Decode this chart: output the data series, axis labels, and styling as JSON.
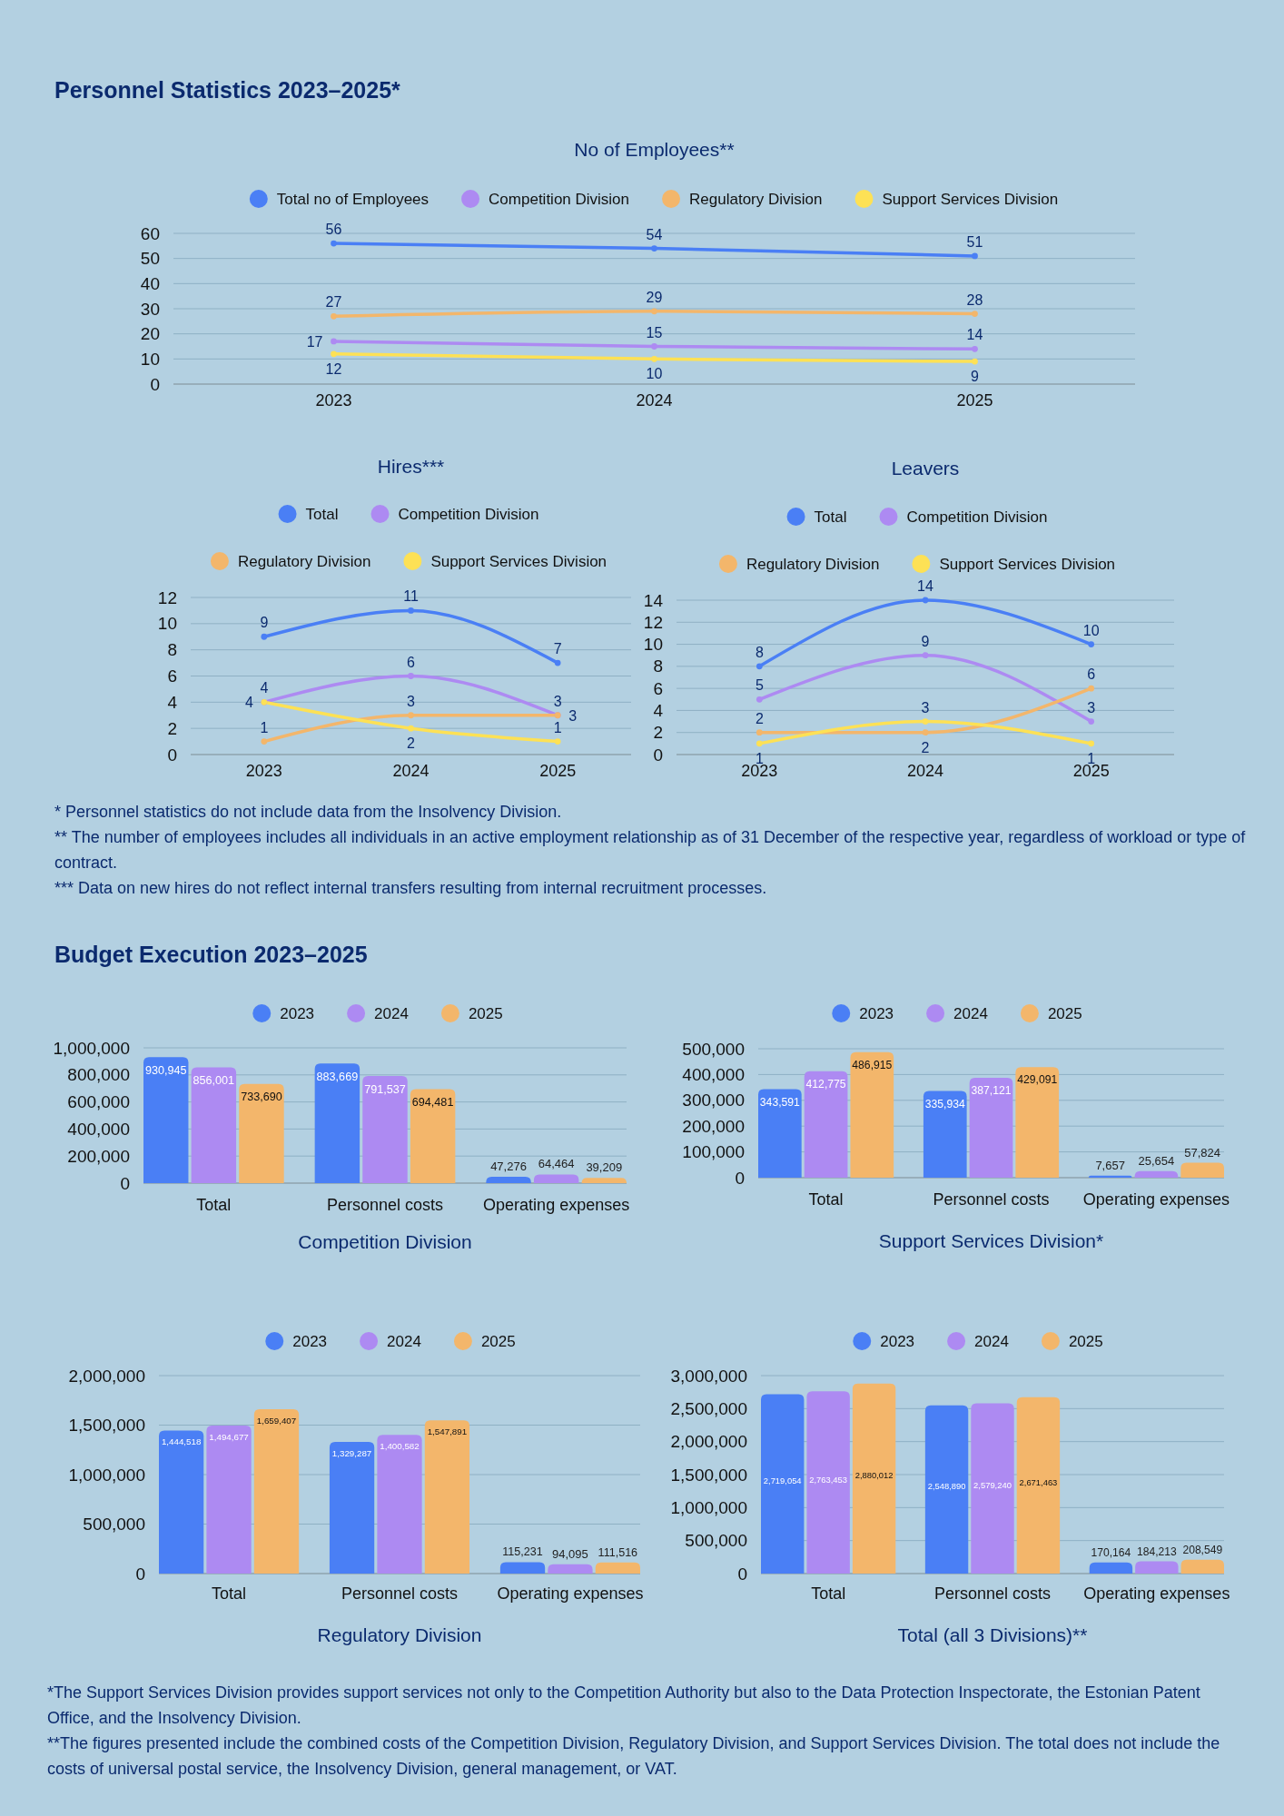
{
  "chart_data": [
    {
      "type": "line",
      "title": "No of Employees**",
      "annotations": [
        "Personnel Statistics 2023–2025*"
      ],
      "categories": [
        "2023",
        "2024",
        "2025"
      ],
      "series": [
        {
          "name": "Total no of Employees",
          "color": "#4a7ff5",
          "values": [
            56,
            54,
            51
          ]
        },
        {
          "name": "Competition Division",
          "color": "#ad8af2",
          "values": [
            17,
            15,
            14
          ]
        },
        {
          "name": "Regulatory Division",
          "color": "#f3b66b",
          "values": [
            27,
            29,
            28
          ]
        },
        {
          "name": "Support Services Division",
          "color": "#fde155",
          "values": [
            12,
            10,
            9
          ]
        }
      ],
      "ylim": [
        0,
        60
      ],
      "yticks": [
        0,
        10,
        20,
        30,
        40,
        50,
        60
      ],
      "grid": "y",
      "legend": "top",
      "marker": "circle",
      "data_labels": true
    },
    {
      "type": "line",
      "title": "Hires***",
      "categories": [
        "2023",
        "2024",
        "2025"
      ],
      "series": [
        {
          "name": "Total",
          "color": "#4a7ff5",
          "values": [
            9,
            11,
            7
          ]
        },
        {
          "name": "Competition Division",
          "color": "#ad8af2",
          "values": [
            4,
            6,
            3
          ]
        },
        {
          "name": "Regulatory Division",
          "color": "#f3b66b",
          "values": [
            1,
            3,
            3
          ]
        },
        {
          "name": "Support Services Division",
          "color": "#fde155",
          "values": [
            4,
            2,
            1
          ]
        }
      ],
      "ylim": [
        0,
        12
      ],
      "yticks": [
        0,
        2,
        4,
        6,
        8,
        10,
        12
      ],
      "grid": "y",
      "legend": "top",
      "marker": "circle",
      "data_labels": true
    },
    {
      "type": "line",
      "title": "Leavers",
      "annotations": [
        "* Personnel statistics do not include data from the Insolvency Division.",
        "** The number of employees includes all individuals in an active employment relationship as of 31 December of the respective year, regardless of workload or type of contract.",
        "*** Data on new hires do not reflect internal transfers resulting from internal recruitment processes."
      ],
      "categories": [
        "2023",
        "2024",
        "2025"
      ],
      "series": [
        {
          "name": "Total",
          "color": "#4a7ff5",
          "values": [
            8,
            14,
            10
          ]
        },
        {
          "name": "Competition Division",
          "color": "#ad8af2",
          "values": [
            5,
            9,
            3
          ]
        },
        {
          "name": "Regulatory Division",
          "color": "#f3b66b",
          "values": [
            2,
            2,
            6
          ]
        },
        {
          "name": "Support Services Division",
          "color": "#fde155",
          "values": [
            1,
            3,
            1
          ]
        }
      ],
      "ylim": [
        0,
        14
      ],
      "yticks": [
        0,
        2,
        4,
        6,
        8,
        10,
        12,
        14
      ],
      "grid": "y",
      "legend": "top",
      "marker": "circle",
      "data_labels": true
    },
    {
      "type": "bar",
      "title": "Competition Division",
      "annotations": [
        "Budget Execution 2023–2025"
      ],
      "categories": [
        "Total",
        "Personnel costs",
        "Operating expenses"
      ],
      "series": [
        {
          "name": "2023",
          "color": "#4a7ff5",
          "values": [
            930945,
            883669,
            47276
          ],
          "value_labels": [
            "930,945",
            "883,669",
            "47,276"
          ]
        },
        {
          "name": "2024",
          "color": "#ad8af2",
          "values": [
            856001,
            791537,
            64464
          ],
          "value_labels": [
            "856,001",
            "791,537",
            "64,464"
          ]
        },
        {
          "name": "2025",
          "color": "#f3b66b",
          "values": [
            733690,
            694481,
            39209
          ],
          "value_labels": [
            "733,690",
            "694,481",
            "39,209"
          ]
        }
      ],
      "ylim": [
        0,
        1000000
      ],
      "yticks": [
        0,
        {
          "value": 200000,
          "label": "200,000"
        },
        {
          "value": 400000,
          "label": "400,000"
        },
        {
          "value": 600000,
          "label": "600,000"
        },
        {
          "value": 800000,
          "label": "800,000"
        },
        {
          "value": 1000000,
          "label": "1,000,000"
        }
      ],
      "grid": "y",
      "legend": "top"
    },
    {
      "type": "bar",
      "title": "Support Services Division*",
      "categories": [
        "Total",
        "Personnel costs",
        "Operating expenses"
      ],
      "series": [
        {
          "name": "2023",
          "color": "#4a7ff5",
          "values": [
            343591,
            335934,
            7657
          ],
          "value_labels": [
            "343,591",
            "335,934",
            "7,657"
          ]
        },
        {
          "name": "2024",
          "color": "#ad8af2",
          "values": [
            412775,
            387121,
            25654
          ],
          "value_labels": [
            "412,775",
            "387,121",
            "25,654"
          ]
        },
        {
          "name": "2025",
          "color": "#f3b66b",
          "values": [
            486915,
            429091,
            57824
          ],
          "value_labels": [
            "486,915",
            "429,091",
            "57,824"
          ]
        }
      ],
      "ylim": [
        0,
        500000
      ],
      "yticks": [
        0,
        {
          "value": 100000,
          "label": "100,000"
        },
        {
          "value": 200000,
          "label": "200,000"
        },
        {
          "value": 300000,
          "label": "300,000"
        },
        {
          "value": 400000,
          "label": "400,000"
        },
        {
          "value": 500000,
          "label": "500,000"
        }
      ],
      "grid": "y",
      "legend": "top"
    },
    {
      "type": "bar",
      "title": "Regulatory Division",
      "categories": [
        "Total",
        "Personnel costs",
        "Operating expenses"
      ],
      "series": [
        {
          "name": "2023",
          "color": "#4a7ff5",
          "values": [
            1444518,
            1329287,
            115231
          ],
          "value_labels": [
            "1,444,518",
            "1,329,287",
            "115,231"
          ]
        },
        {
          "name": "2024",
          "color": "#ad8af2",
          "values": [
            1494677,
            1400582,
            94095
          ],
          "value_labels": [
            "1,494,677",
            "1,400,582",
            "94,095"
          ]
        },
        {
          "name": "2025",
          "color": "#f3b66b",
          "values": [
            1659407,
            1547891,
            111516
          ],
          "value_labels": [
            "1,659,407",
            "1,547,891",
            "111,516"
          ]
        }
      ],
      "ylim": [
        0,
        2000000
      ],
      "yticks": [
        0,
        {
          "value": 500000,
          "label": "500,000"
        },
        {
          "value": 1000000,
          "label": "1,000,000"
        },
        {
          "value": 1500000,
          "label": "1,500,000"
        },
        {
          "value": 2000000,
          "label": "2,000,000"
        }
      ],
      "grid": "y",
      "legend": "top"
    },
    {
      "type": "bar",
      "title": "Total (all 3 Divisions)**",
      "annotations": [
        "*The Support Services Division provides support services not only to the Competition Authority but also to the Data Protection Inspectorate, the Estonian Patent Office, and the Insolvency Division.",
        "**The figures presented include the combined costs of the Competition Division, Regulatory Division, and Support Services Division. The total does not include the costs of universal postal service, the Insolvency Division, general management, or VAT."
      ],
      "categories": [
        "Total",
        "Personnel costs",
        "Operating expenses"
      ],
      "series": [
        {
          "name": "2023",
          "color": "#4a7ff5",
          "values": [
            2719054,
            2548890,
            170164
          ],
          "value_labels": [
            "2,719,054",
            "2,548,890",
            "170,164"
          ]
        },
        {
          "name": "2024",
          "color": "#ad8af2",
          "values": [
            2763453,
            2579240,
            184213
          ],
          "value_labels": [
            "2,763,453",
            "2,579,240",
            "184,213"
          ]
        },
        {
          "name": "2025",
          "color": "#f3b66b",
          "values": [
            2880012,
            2671463,
            208549
          ],
          "value_labels": [
            "2,880,012",
            "2,671,463",
            "208,549"
          ]
        }
      ],
      "ylim": [
        0,
        3000000
      ],
      "yticks": [
        0,
        {
          "value": 500000,
          "label": "500,000"
        },
        {
          "value": 1000000,
          "label": "1,000,000"
        },
        {
          "value": 1500000,
          "label": "1,500,000"
        },
        {
          "value": 2000000,
          "label": "2,000,000"
        },
        {
          "value": 2500000,
          "label": "2,500,000"
        },
        {
          "value": 3000000,
          "label": "3,000,000"
        }
      ],
      "grid": "y",
      "legend": "top"
    }
  ]
}
